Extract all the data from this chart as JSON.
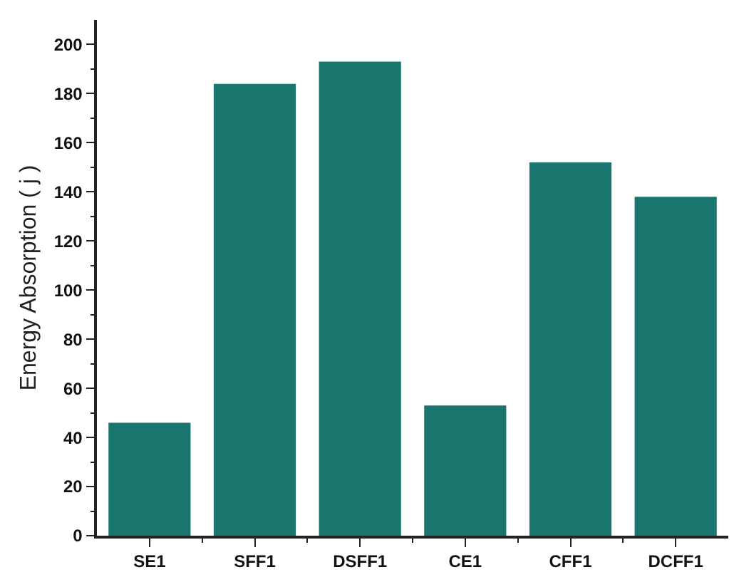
{
  "chart_data": {
    "type": "bar",
    "ylabel": "Energy Absorption ( j )",
    "categories": [
      "SE1",
      "SFF1",
      "DSFF1",
      "CE1",
      "CFF1",
      "DCFF1"
    ],
    "values": [
      46,
      184,
      193,
      53,
      152,
      138
    ],
    "color": "#19766f",
    "ylim": [
      0,
      210
    ],
    "yticks": [
      0,
      {
        "value": 10,
        "label": null
      },
      20,
      {
        "value": 30,
        "label": null
      },
      40,
      {
        "value": 50,
        "label": null
      },
      60,
      {
        "value": 70,
        "label": null
      },
      80,
      {
        "value": 90,
        "label": null
      },
      100,
      {
        "value": 110,
        "label": null
      },
      120,
      {
        "value": 130,
        "label": null
      },
      140,
      {
        "value": 150,
        "label": null
      },
      160,
      {
        "value": 170,
        "label": null
      },
      180,
      {
        "value": 190,
        "label": null
      },
      200
    ]
  }
}
